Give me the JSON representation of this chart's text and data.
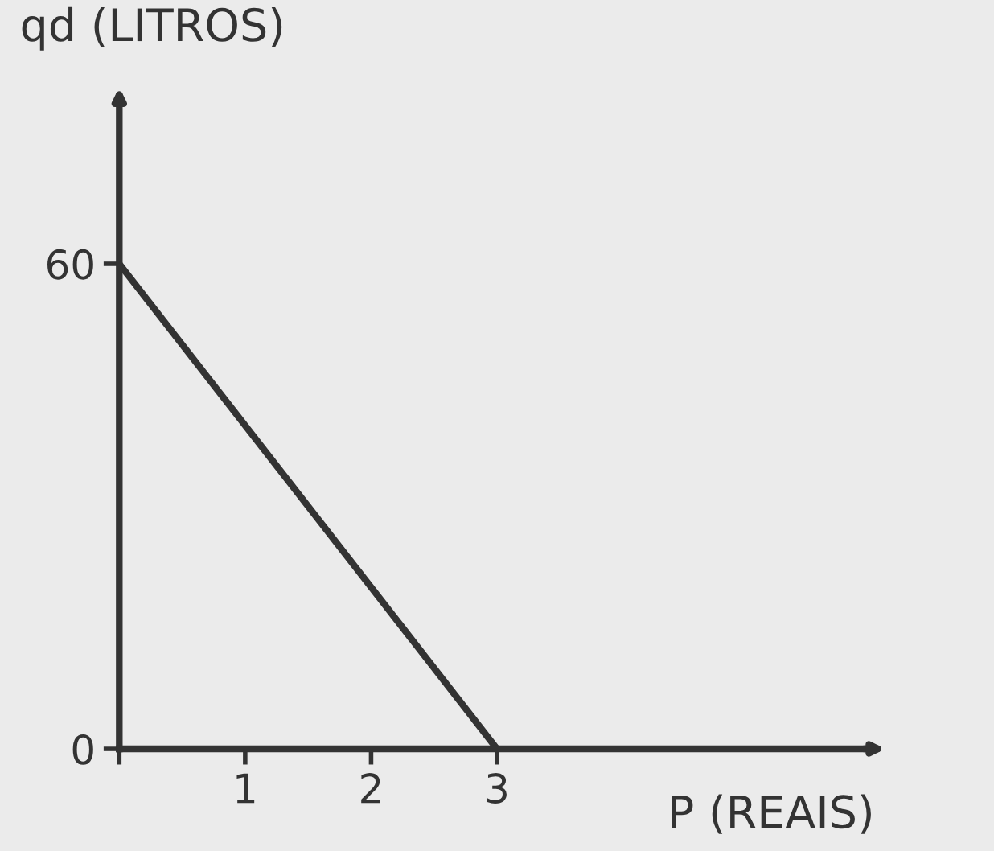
{
  "chart_data": {
    "type": "line",
    "xlabel": "P (REAIS)",
    "ylabel": "qd (LITROS)",
    "x": [
      0,
      3
    ],
    "series": [
      {
        "color": "#333333",
        "values": [
          60,
          0
        ]
      }
    ],
    "xlim": [
      0,
      6
    ],
    "ylim": [
      0,
      80
    ],
    "xticks": [
      {
        "value": 0,
        "label": null
      },
      1,
      2,
      3
    ],
    "yticks": [
      0,
      60
    ],
    "marker": "none",
    "line_style": "solid"
  }
}
